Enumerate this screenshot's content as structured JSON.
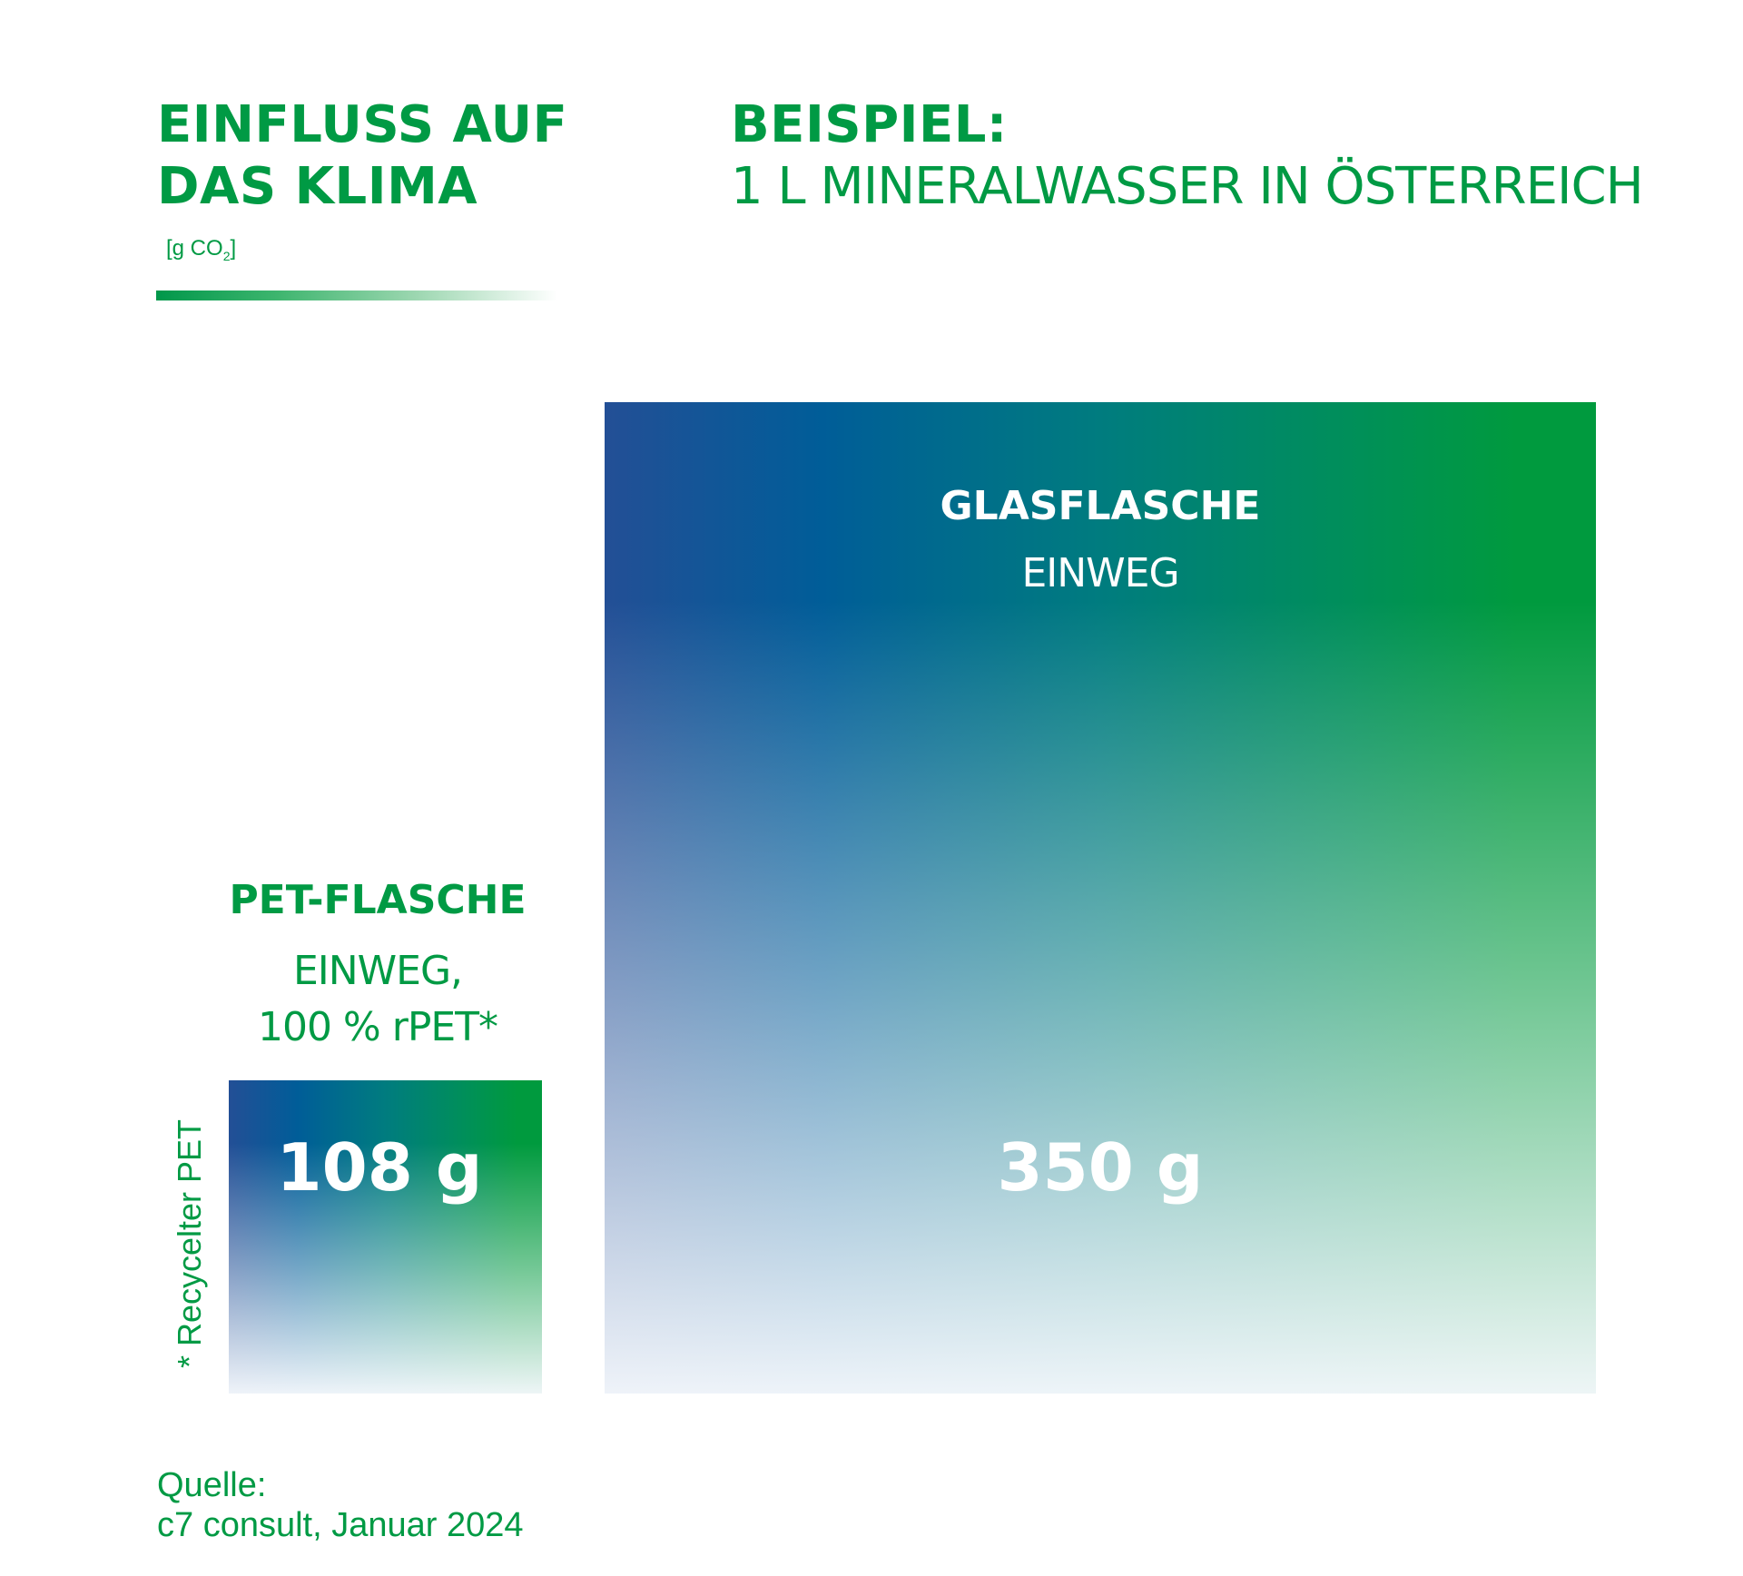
{
  "header": {
    "left_title_line1": "EINFLUSS AUF",
    "left_title_line2": "DAS KLIMA",
    "unit_prefix": "[g CO",
    "unit_sub": "2",
    "unit_suffix": "]",
    "right_title_line1": "BEISPIEL:",
    "right_title_line2": "1 L MINERALWASSER IN ÖSTERREICH"
  },
  "chart_data": {
    "type": "bar",
    "title": "EINFLUSS AUF DAS KLIMA",
    "ylabel": "[g CO2]",
    "categories": [
      "PET-FLASCHE EINWEG, 100 % rPET*",
      "GLASFLASCHE EINWEG"
    ],
    "values": [
      108,
      350
    ],
    "value_labels": [
      "108 g",
      "350 g"
    ],
    "encoding": "square side length proportional to value",
    "colors": {
      "gradient_start": "#234f96",
      "gradient_mid": "#005d98",
      "gradient_end": "#009a3e",
      "text": "#009a44"
    }
  },
  "bars": {
    "pet": {
      "title": "PET-FLASCHE",
      "line1": "EINWEG,",
      "line2": "100 % rPET*",
      "value_label": "108 g"
    },
    "glas": {
      "title": "GLASFLASCHE",
      "line1": "EINWEG",
      "value_label": "350 g"
    }
  },
  "footnote": "* Recycelter PET",
  "source": {
    "label": "Quelle:",
    "text": "c7 consult, Januar 2024"
  }
}
